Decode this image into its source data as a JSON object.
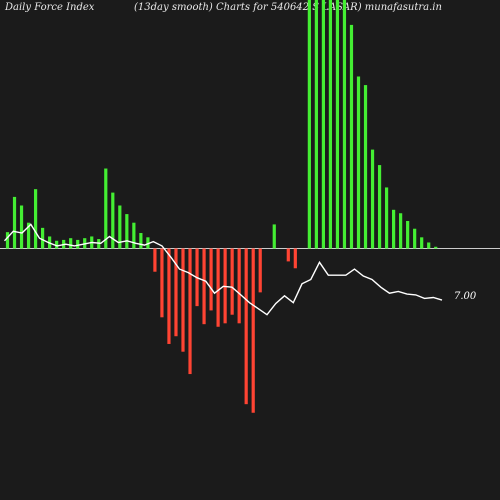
{
  "header": {
    "title": "Daily Force  Index",
    "subtitle": "(13day smooth) Charts for 540642                 S LASAR) munafasutra.in"
  },
  "chart_data": {
    "type": "bar",
    "title": "Daily Force  Index",
    "subtitle": "(13day smooth) Charts for 540642                 S LASAR) munafasutra.in",
    "end_label": "7.00",
    "colors": {
      "positive": "#44ee33",
      "negative": "#ff4433",
      "line": "#ffffff",
      "baseline": "#cccccc",
      "background": "#1b1b1b"
    },
    "ylim": [
      -2.0,
      2.8
    ],
    "bars": [
      0.19,
      0.6,
      0.5,
      0.3,
      0.69,
      0.24,
      0.14,
      0.09,
      0.1,
      0.12,
      0.1,
      0.12,
      0.14,
      0.11,
      0.93,
      0.65,
      0.5,
      0.4,
      0.3,
      0.18,
      0.13,
      -0.27,
      -0.8,
      -1.11,
      -1.02,
      -1.2,
      -1.46,
      -0.67,
      -0.88,
      -0.72,
      -0.91,
      -0.87,
      -0.77,
      -0.87,
      -1.81,
      -1.91,
      -0.51,
      0,
      0.28,
      0,
      -0.15,
      -0.23,
      0,
      3.9,
      3.6,
      3.0,
      4.1,
      3.8,
      3.3,
      2.6,
      2.0,
      1.9,
      1.15,
      0.97,
      0.71,
      0.45,
      0.41,
      0.32,
      0.23,
      0.13,
      0.07,
      0.02
    ],
    "smooth_line": [
      0.09,
      0.2,
      0.18,
      0.28,
      0.12,
      0.07,
      0.03,
      0.05,
      0.03,
      0.05,
      0.07,
      0.06,
      0.14,
      0.07,
      0.09,
      0.06,
      0.04,
      0.08,
      0.03,
      -0.1,
      -0.24,
      -0.28,
      -0.34,
      -0.38,
      -0.52,
      -0.44,
      -0.45,
      -0.54,
      -0.63,
      -0.7,
      -0.77,
      -0.64,
      -0.55,
      -0.63,
      -0.41,
      -0.36,
      -0.16,
      -0.31,
      -0.31,
      -0.31,
      -0.24,
      -0.32,
      -0.36,
      -0.45,
      -0.52,
      -0.5,
      -0.53,
      -0.54,
      -0.58,
      -0.57,
      -0.6
    ]
  }
}
